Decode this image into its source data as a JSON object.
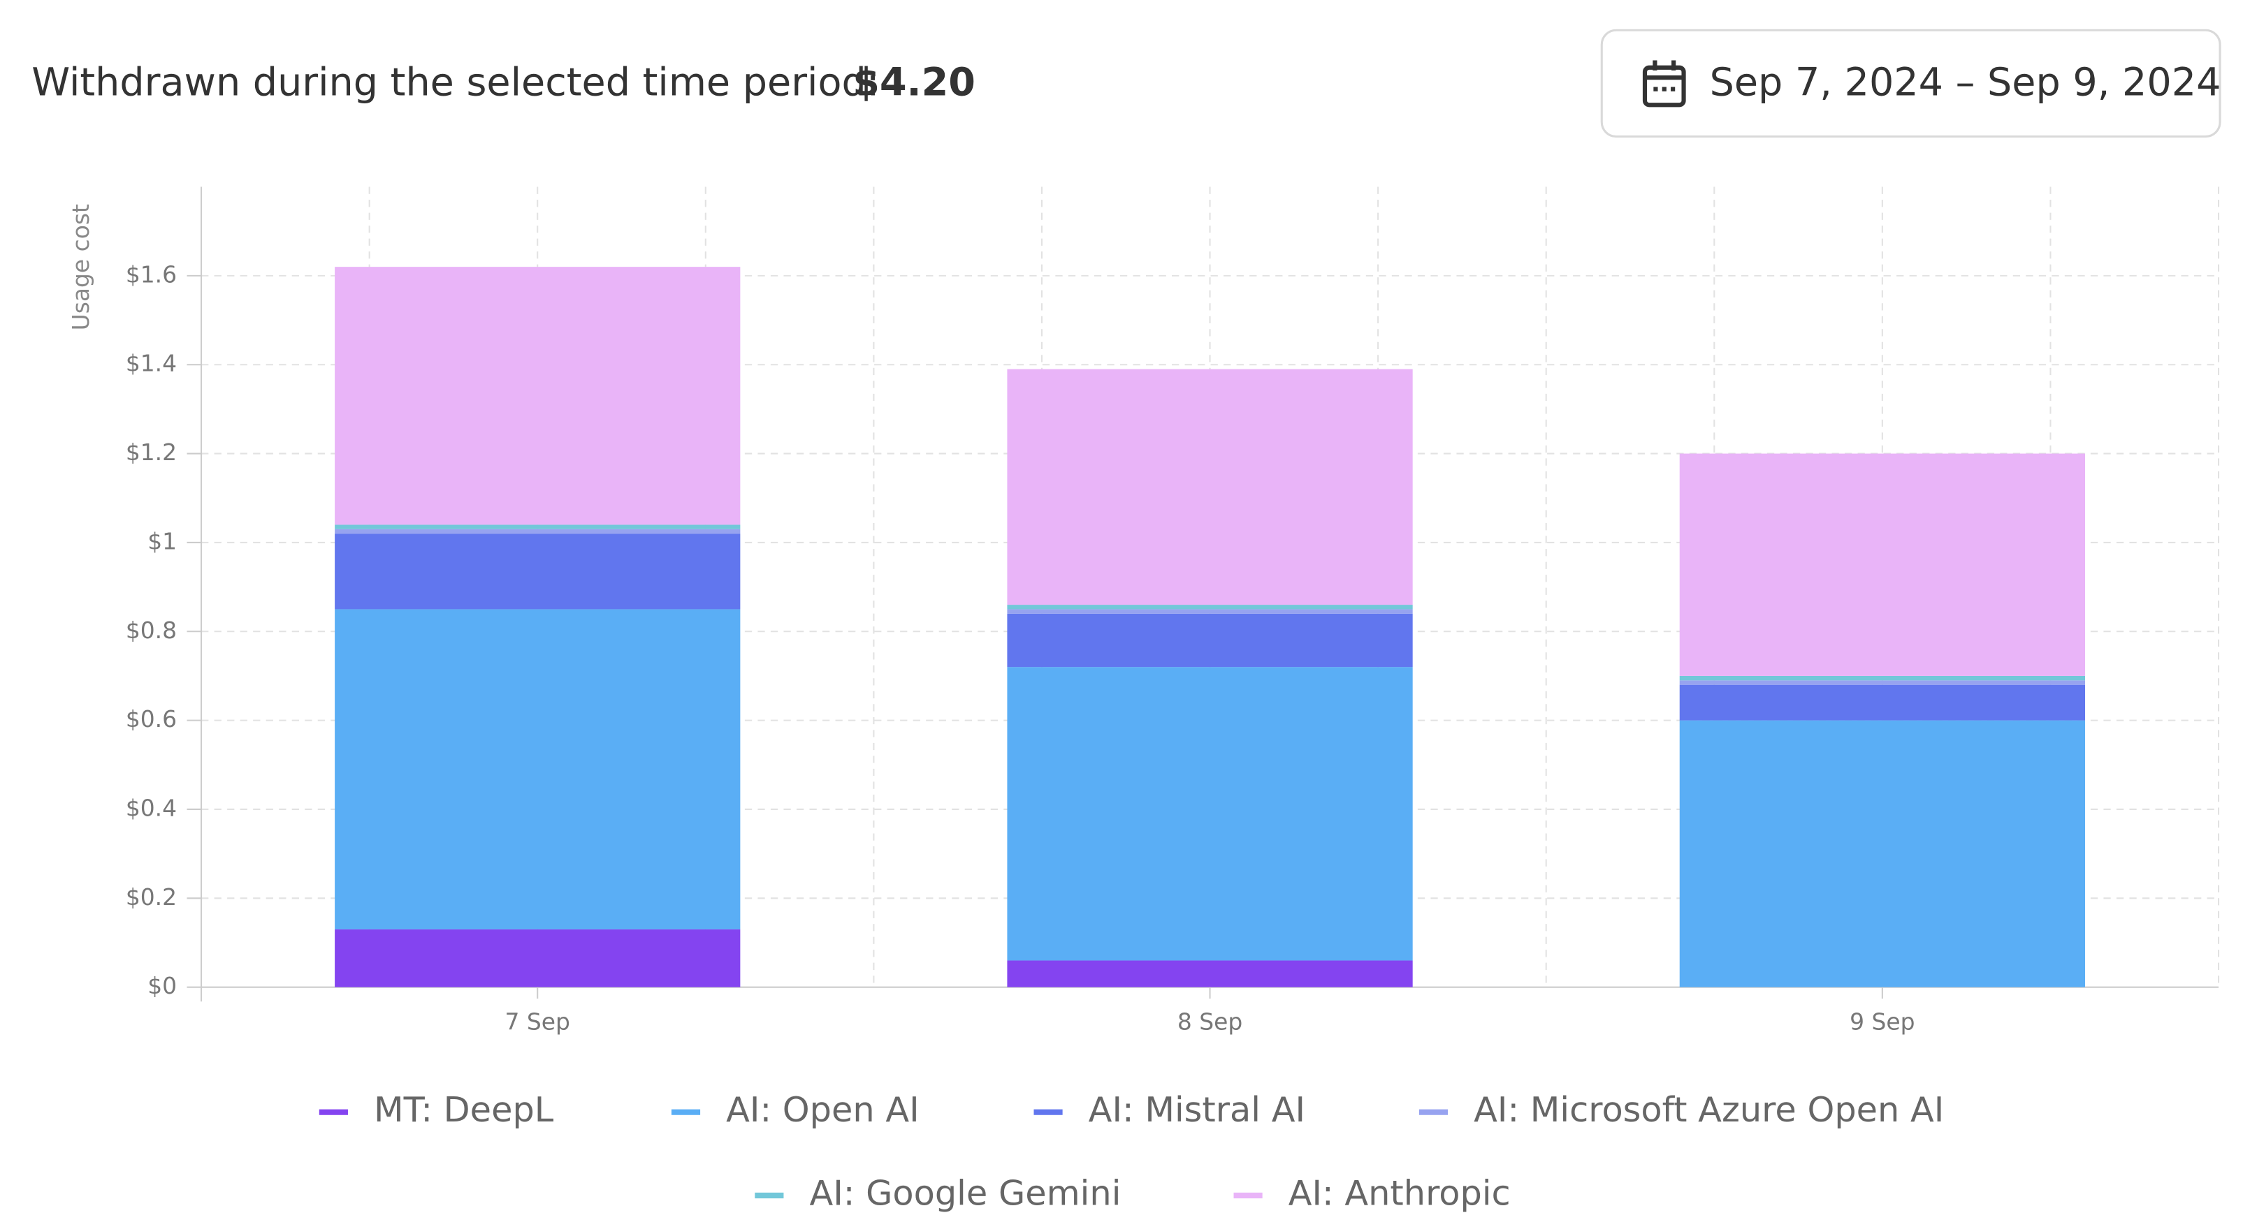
{
  "header": {
    "label": "Withdrawn during the selected time period:",
    "amount": "$4.20",
    "date_range": "Sep 7, 2024 – Sep 9, 2024"
  },
  "chart_data": {
    "type": "stacked_bar",
    "ylabel": "Usage cost",
    "categories": [
      "7 Sep",
      "8 Sep",
      "9 Sep"
    ],
    "series": [
      {
        "name": "MT: DeepL",
        "color": "#8444f0",
        "values": [
          0.13,
          0.06,
          0
        ]
      },
      {
        "name": "AI: Open AI",
        "color": "#5aaef5",
        "values": [
          0.72,
          0.66,
          0.6
        ]
      },
      {
        "name": "AI: Mistral AI",
        "color": "#6176ee",
        "values": [
          0.17,
          0.12,
          0.08
        ]
      },
      {
        "name": "AI: Microsoft Azure Open AI",
        "color": "#97a3f0",
        "values": [
          0.01,
          0.01,
          0.01
        ]
      },
      {
        "name": "AI: Google Gemini",
        "color": "#72c7d9",
        "values": [
          0.01,
          0.01,
          0.01
        ]
      },
      {
        "name": "AI: Anthropic",
        "color": "#e9b4f8",
        "values": [
          0.58,
          0.53,
          0.5
        ]
      }
    ],
    "ylim": [
      0,
      1.8
    ],
    "yticks": [
      {
        "value": 0,
        "label": "$0"
      },
      {
        "value": 0.2,
        "label": "$0.2"
      },
      {
        "value": 0.4,
        "label": "$0.4"
      },
      {
        "value": 0.6,
        "label": "$0.6"
      },
      {
        "value": 0.8,
        "label": "$0.8"
      },
      {
        "value": 1,
        "label": "$1"
      },
      {
        "value": 1.2,
        "label": "$1.2"
      },
      {
        "value": 1.4,
        "label": "$1.4"
      },
      {
        "value": 1.6,
        "label": "$1.6"
      }
    ],
    "grid": true
  }
}
